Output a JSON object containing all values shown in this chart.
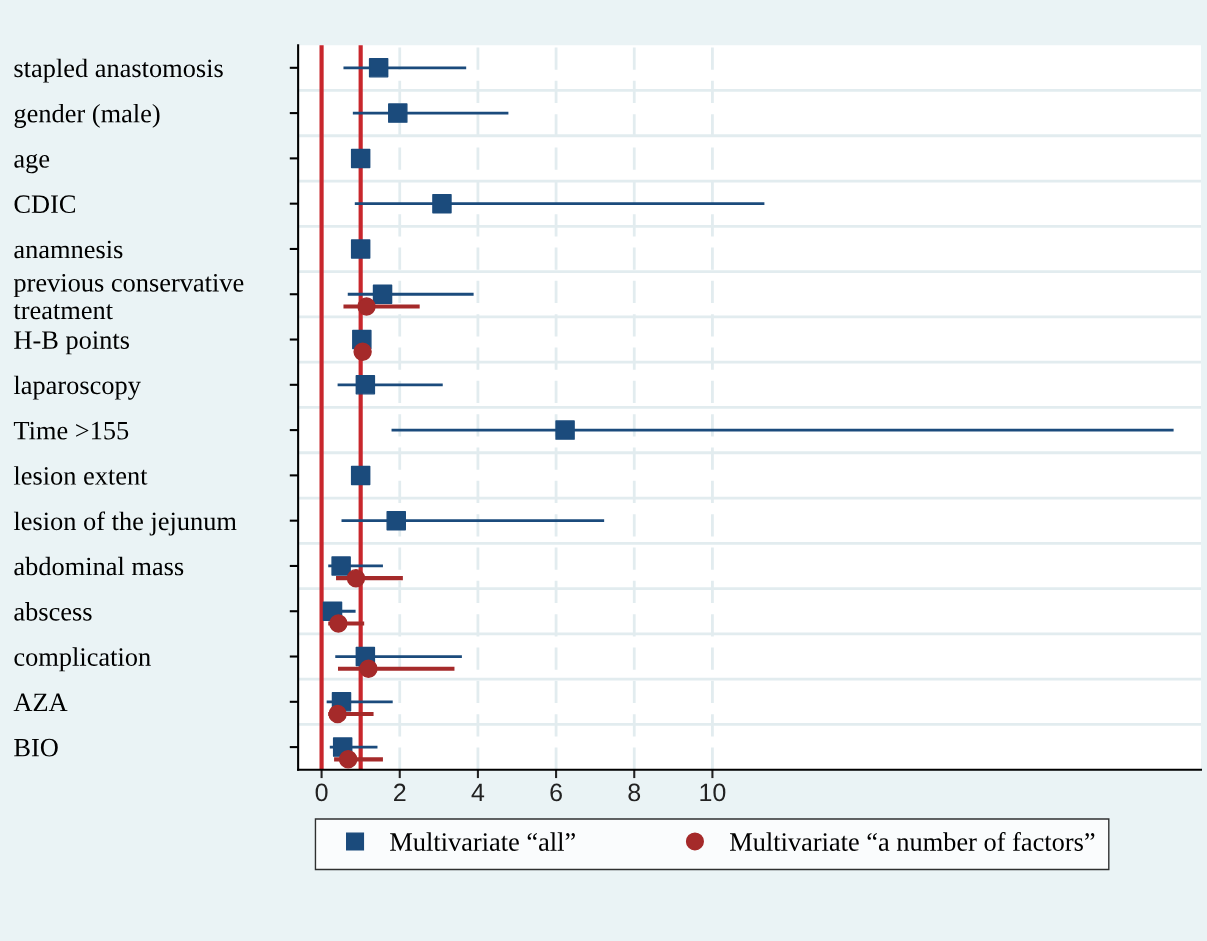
{
  "chart_data": {
    "type": "scatter",
    "orientation": "horizontal",
    "categories": [
      "stapled anastomosis",
      "gender (male)",
      "age",
      "CDIC",
      "anamnesis",
      "previous conservative\ntreatment",
      "H-B points",
      "laparoscopy",
      "Time >155",
      "lesion extent",
      "lesion of the jejunum",
      "abdominal mass",
      "abscess",
      "complication",
      "AZA",
      "BIO"
    ],
    "series": [
      {
        "name": "Multivariate “all”",
        "color": "#1b4b7c",
        "marker": "square",
        "values": [
          1.46,
          1.95,
          1.0,
          3.08,
          1.0,
          1.56,
          1.03,
          1.12,
          6.23,
          1.0,
          1.91,
          0.5,
          0.28,
          1.12,
          0.51,
          0.54
        ],
        "errors": [
          [
            0.56,
            3.7
          ],
          [
            0.8,
            4.78
          ],
          null,
          [
            0.85,
            11.33
          ],
          null,
          [
            0.67,
            3.89
          ],
          null,
          [
            0.41,
            3.1
          ],
          [
            1.79,
            21.8
          ],
          null,
          [
            0.51,
            7.23
          ],
          [
            0.17,
            1.57
          ],
          [
            0.07,
            0.87
          ],
          [
            0.35,
            3.59
          ],
          [
            0.13,
            1.82
          ],
          [
            0.21,
            1.43
          ]
        ]
      },
      {
        "name": "Multivariate “a number of factors”",
        "color": "#a52a2a",
        "marker": "circle",
        "values": [
          null,
          null,
          null,
          null,
          null,
          1.15,
          1.05,
          null,
          null,
          null,
          null,
          0.88,
          0.43,
          1.2,
          0.41,
          0.68
        ],
        "errors": [
          null,
          null,
          null,
          null,
          null,
          [
            0.56,
            2.51
          ],
          null,
          null,
          null,
          null,
          null,
          [
            0.37,
            2.08
          ],
          [
            0.17,
            1.09
          ],
          [
            0.42,
            3.4
          ],
          [
            0.17,
            1.33
          ],
          [
            0.32,
            1.57
          ]
        ]
      }
    ],
    "xlim": [
      -0.6,
      22.5
    ],
    "xticks": [
      0,
      2,
      4,
      6,
      8,
      10
    ],
    "ref_lines": [
      {
        "axis": "x",
        "value": 0,
        "color": "#c8262c"
      },
      {
        "axis": "x",
        "value": 1,
        "color": "#c8262c"
      }
    ],
    "grid": true,
    "legend": "bottom"
  }
}
